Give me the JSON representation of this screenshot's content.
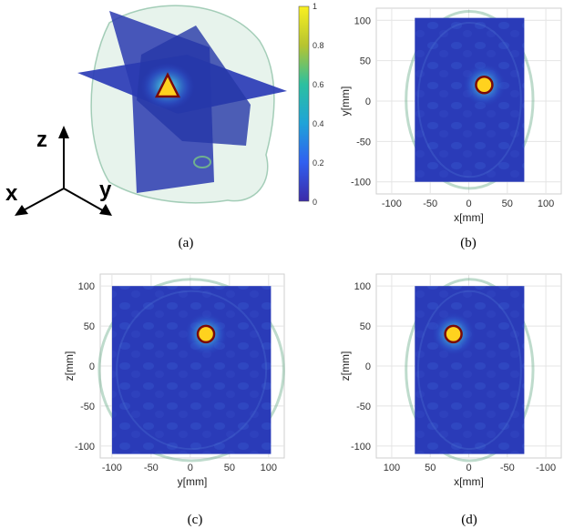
{
  "captions": {
    "a": "(a)",
    "b": "(b)",
    "c": "(c)",
    "d": "(d)"
  },
  "axes_3d": {
    "z": "z",
    "x": "x",
    "y": "y"
  },
  "colorbar": {
    "ticks": [
      "1",
      "0.8",
      "0.6",
      "0.4",
      "0.2",
      "0"
    ]
  },
  "colors": {
    "field_bg": "#2a3bb8",
    "hotspot_outer": "#7a0a0a",
    "hotspot_inner": "#ffd21e",
    "head_outline": "#6fb08f"
  },
  "chart_data": [
    {
      "type": "heatmap",
      "panel": "b",
      "xlabel": "x[mm]",
      "ylabel": "y[mm]",
      "xticks": [
        "-100",
        "-50",
        "0",
        "50",
        "100"
      ],
      "yticks": [
        "100",
        "50",
        "0",
        "-50",
        "-100"
      ],
      "xlim": [
        -120,
        120
      ],
      "ylim": [
        -115,
        115
      ],
      "field_extent": {
        "x": [
          -70,
          72
        ],
        "y": [
          -100,
          103
        ]
      },
      "focus": {
        "x": 20,
        "y": 20
      }
    },
    {
      "type": "heatmap",
      "panel": "c",
      "xlabel": "y[mm]",
      "ylabel": "z[mm]",
      "xticks": [
        "-100",
        "-50",
        "0",
        "50",
        "100"
      ],
      "yticks": [
        "100",
        "50",
        "0",
        "-50",
        "-100"
      ],
      "xlim": [
        -115,
        120
      ],
      "ylim": [
        -115,
        115
      ],
      "field_extent": {
        "x": [
          -100,
          103
        ],
        "y": [
          -110,
          100
        ]
      },
      "focus": {
        "x": 20,
        "y": 40
      }
    },
    {
      "type": "heatmap",
      "panel": "d",
      "xlabel": "x[mm]",
      "ylabel": "z[mm]",
      "xticks": [
        "100",
        "50",
        "0",
        "-50",
        "-100"
      ],
      "yticks": [
        "100",
        "50",
        "0",
        "-50",
        "-100"
      ],
      "xlim": [
        120,
        -120
      ],
      "ylim": [
        -115,
        115
      ],
      "field_extent": {
        "x": [
          70,
          -72
        ],
        "y": [
          -110,
          100
        ]
      },
      "focus": {
        "x": 20,
        "y": 40
      }
    }
  ]
}
